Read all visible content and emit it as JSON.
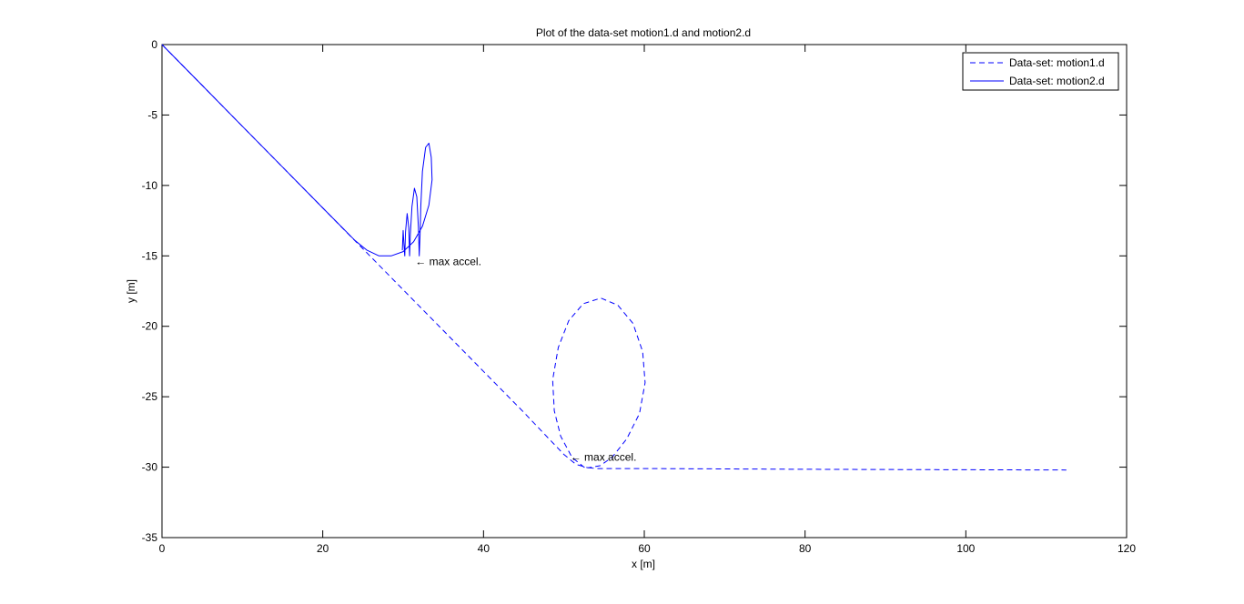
{
  "chart_data": {
    "type": "line",
    "title": "Plot of the data-set motion1.d and motion2.d",
    "xlabel": "x [m]",
    "ylabel": "y [m]",
    "xlim": [
      0,
      120
    ],
    "ylim": [
      -35,
      0
    ],
    "xticks": [
      0,
      20,
      40,
      60,
      80,
      100,
      120
    ],
    "yticks": [
      0,
      -5,
      -10,
      -15,
      -20,
      -25,
      -30,
      -35
    ],
    "grid": false,
    "legend_position": "top-right",
    "series": [
      {
        "name": "Data-set: motion1.d",
        "style": "dashed",
        "color": "#0000ff",
        "points": [
          [
            0,
            0
          ],
          [
            5,
            -2.9
          ],
          [
            10,
            -5.8
          ],
          [
            15,
            -8.7
          ],
          [
            20,
            -11.6
          ],
          [
            25,
            -14.5
          ],
          [
            30,
            -17.4
          ],
          [
            35,
            -20.3
          ],
          [
            40,
            -23.2
          ],
          [
            45,
            -26.1
          ],
          [
            48,
            -27.9
          ],
          [
            50,
            -29.1
          ],
          [
            51.5,
            -29.8
          ],
          [
            53,
            -30.05
          ],
          [
            54.5,
            -29.9
          ],
          [
            56,
            -29.3
          ],
          [
            57.8,
            -28.0
          ],
          [
            59.4,
            -26.2
          ],
          [
            60.1,
            -24.0
          ],
          [
            59.8,
            -21.8
          ],
          [
            58.6,
            -19.8
          ],
          [
            56.7,
            -18.5
          ],
          [
            54.6,
            -18.0
          ],
          [
            52.4,
            -18.4
          ],
          [
            50.6,
            -19.6
          ],
          [
            49.3,
            -21.5
          ],
          [
            48.6,
            -23.8
          ],
          [
            48.8,
            -26.0
          ],
          [
            49.6,
            -27.8
          ],
          [
            51.0,
            -29.3
          ],
          [
            52.5,
            -30.0
          ],
          [
            54,
            -30.1
          ],
          [
            60,
            -30.1
          ],
          [
            80,
            -30.15
          ],
          [
            100,
            -30.18
          ],
          [
            112.5,
            -30.2
          ]
        ]
      },
      {
        "name": "Data-set: motion2.d",
        "style": "solid",
        "color": "#0000ff",
        "points": [
          [
            0,
            0
          ],
          [
            5,
            -2.9
          ],
          [
            10,
            -5.8
          ],
          [
            15,
            -8.7
          ],
          [
            20,
            -11.6
          ],
          [
            24,
            -13.9
          ],
          [
            25.5,
            -14.6
          ],
          [
            27,
            -15.0
          ],
          [
            28.5,
            -15.0
          ],
          [
            30,
            -14.7
          ],
          [
            31.3,
            -14.0
          ],
          [
            32.4,
            -12.9
          ],
          [
            33.2,
            -11.4
          ],
          [
            33.6,
            -9.6
          ],
          [
            33.5,
            -8.0
          ],
          [
            33.2,
            -7.0
          ],
          [
            32.8,
            -7.3
          ],
          [
            32.4,
            -9.0
          ],
          [
            32.2,
            -11.5
          ],
          [
            32.1,
            -13.5
          ],
          [
            32.0,
            -15.0
          ],
          [
            31.9,
            -13.0
          ],
          [
            31.7,
            -10.8
          ],
          [
            31.4,
            -10.2
          ],
          [
            31.1,
            -11.5
          ],
          [
            30.9,
            -13.5
          ],
          [
            30.8,
            -15.0
          ],
          [
            30.7,
            -13.0
          ],
          [
            30.5,
            -12.0
          ],
          [
            30.3,
            -13.3
          ],
          [
            30.2,
            -15.0
          ],
          [
            30.1,
            -14.2
          ],
          [
            30.0,
            -13.2
          ],
          [
            29.9,
            -14.6
          ]
        ]
      }
    ],
    "annotations": [
      {
        "text": "← max accel.",
        "x": 31.5,
        "y": -15.4
      },
      {
        "text": "← max accel.",
        "x": 50.8,
        "y": -29.3
      }
    ]
  }
}
